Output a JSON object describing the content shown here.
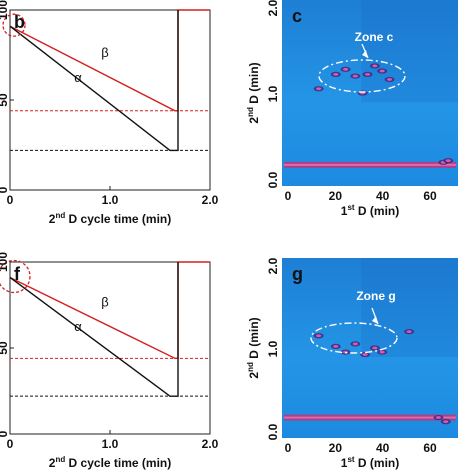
{
  "colors": {
    "beta_line": "#d32020",
    "alpha_line": "#111111",
    "dotted_red": "#d32020",
    "dotted_black": "#111111",
    "heatmap_bg": "#1f8fe0",
    "band": "#c2408a",
    "annotation": "#ffffff"
  },
  "chart_data": [
    {
      "panel": "b",
      "type": "line",
      "xlabel_prefix": "2",
      "xlabel_sup": "nd",
      "xlabel_rest": " D cycle time (min)",
      "xticks": [
        "0",
        "1.0",
        "2.0"
      ],
      "yticks": [
        "100",
        "50",
        "0"
      ],
      "xlim": [
        0,
        2.0
      ],
      "series": [
        {
          "name": "β",
          "color": "#d32020",
          "x": [
            0,
            1.65,
            1.68,
            1.68,
            2.0
          ],
          "y": [
            91,
            44,
            44,
            100,
            100
          ]
        },
        {
          "name": "α",
          "color": "#111111",
          "x": [
            0,
            1.6,
            1.68,
            1.68
          ],
          "y": [
            91,
            22,
            22,
            100
          ]
        }
      ],
      "reference_lines": [
        {
          "color": "#d32020",
          "y": 44
        },
        {
          "color": "#111111",
          "y": 22
        }
      ],
      "annotation": "dashed circle at t = 0"
    },
    {
      "panel": "c",
      "type": "heatmap",
      "xlabel_prefix": "1",
      "xlabel_sup": "st",
      "xlabel_rest": " D (min)",
      "ylabel_prefix": "2",
      "ylabel_sup": "nd",
      "ylabel_rest": " D (min)",
      "xticks": [
        "0",
        "20",
        "40",
        "60"
      ],
      "yticks": [
        "2.0",
        "1.0",
        "0.0"
      ],
      "zone_label": "Zone c",
      "peaks": [
        {
          "x": 22,
          "y": 1.32
        },
        {
          "x": 26,
          "y": 1.38
        },
        {
          "x": 30,
          "y": 1.3
        },
        {
          "x": 35,
          "y": 1.32
        },
        {
          "x": 38,
          "y": 1.42
        },
        {
          "x": 41,
          "y": 1.36
        },
        {
          "x": 44,
          "y": 1.26
        },
        {
          "x": 15,
          "y": 1.15
        },
        {
          "x": 33,
          "y": 1.1
        },
        {
          "x": 66,
          "y": 0.28
        },
        {
          "x": 68,
          "y": 0.3
        }
      ],
      "band_y": 0.25
    },
    {
      "panel": "f",
      "type": "line",
      "xlabel_prefix": "2",
      "xlabel_sup": "nd",
      "xlabel_rest": " D cycle time (min)",
      "xticks": [
        "0",
        "1.0",
        "2.0"
      ],
      "yticks": [
        "100",
        "50",
        "0"
      ],
      "xlim": [
        0,
        2.0
      ],
      "series": [
        {
          "name": "β",
          "color": "#d32020",
          "x": [
            0,
            1.65,
            1.68,
            1.68,
            2.0
          ],
          "y": [
            91,
            44,
            44,
            100,
            100
          ]
        },
        {
          "name": "α",
          "color": "#111111",
          "x": [
            0,
            1.6,
            1.68,
            1.68
          ],
          "y": [
            91,
            22,
            22,
            100
          ]
        }
      ],
      "reference_lines": [
        {
          "color": "#d32020",
          "y": 44
        },
        {
          "color": "#111111",
          "y": 22
        }
      ],
      "annotation": "dashed circle at t = 0"
    },
    {
      "panel": "g",
      "type": "heatmap",
      "xlabel_prefix": "1",
      "xlabel_sup": "st",
      "xlabel_rest": " D (min)",
      "ylabel_prefix": "2",
      "ylabel_sup": "nd",
      "ylabel_rest": " D (min)",
      "xticks": [
        "0",
        "20",
        "40",
        "60"
      ],
      "yticks": [
        "2.0",
        "1.0",
        "0.0"
      ],
      "zone_label": "Zone g",
      "peaks": [
        {
          "x": 22,
          "y": 1.12
        },
        {
          "x": 26,
          "y": 1.05
        },
        {
          "x": 30,
          "y": 1.15
        },
        {
          "x": 34,
          "y": 1.02
        },
        {
          "x": 38,
          "y": 1.1
        },
        {
          "x": 41,
          "y": 1.05
        },
        {
          "x": 15,
          "y": 1.25
        },
        {
          "x": 52,
          "y": 1.3
        },
        {
          "x": 64,
          "y": 0.25
        },
        {
          "x": 67,
          "y": 0.2
        }
      ],
      "band_y": 0.25
    }
  ]
}
